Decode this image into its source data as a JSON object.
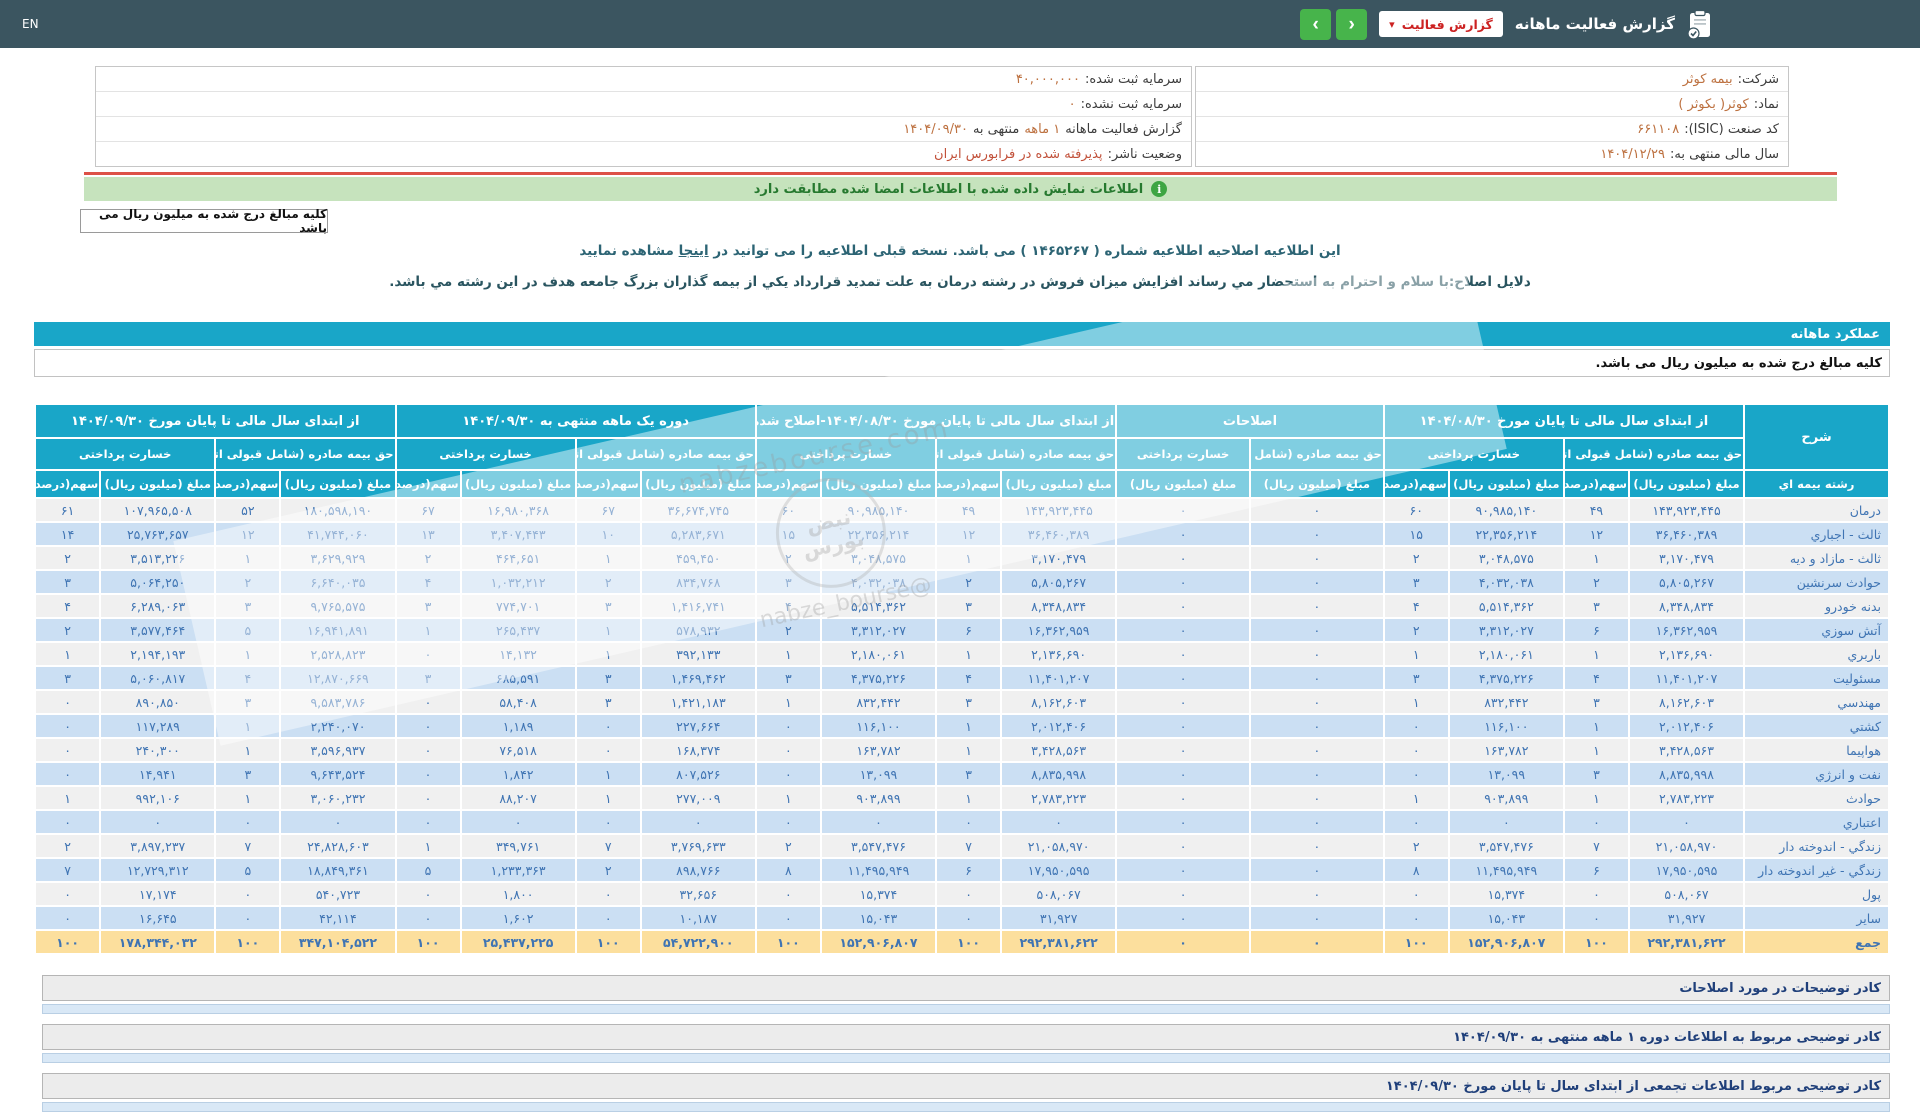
{
  "colors": {
    "topbar_bg": "#3b5560",
    "accent_teal": "#19a6c8",
    "button_green": "#47b44b",
    "dropdown_text_red": "#cc2222",
    "banner_green_bg": "#c6e3bd",
    "banner_text_green": "#26792f",
    "red_line": "#dd5147",
    "value_orange": "#bd7140",
    "row_blue": "#cbdff3",
    "row_gray": "#f0f0f0",
    "total_yellow": "#fcdf9d",
    "number_blue": "#3f74b3",
    "note_text_navy": "#1f3f7a"
  },
  "topbar": {
    "title": "گزارش فعالیت ماهانه",
    "dropdown_label": "گزارش فعالیت",
    "lang": "EN"
  },
  "info_right": [
    {
      "label": "شرکت:",
      "value": "بیمه کوثر"
    },
    {
      "label": "نماد:",
      "value": "کوثر( بکوثر )"
    },
    {
      "label": "کد صنعت (ISIC):",
      "value": "۶۶۱۱۰۸"
    },
    {
      "label": "سال مالی منتهی به:",
      "value": "۱۴۰۴/۱۲/۲۹"
    }
  ],
  "info_left": [
    {
      "label": "سرمایه ثبت شده:",
      "value": "۴۰,۰۰۰,۰۰۰"
    },
    {
      "label": "سرمایه ثبت نشده:",
      "value": "۰"
    },
    {
      "label": "گزارش فعالیت ماهانه",
      "value": "۱ ماهه",
      "label2": "منتهی به",
      "value2": "۱۴۰۴/۰۹/۳۰"
    },
    {
      "label": "وضعیت ناشر:",
      "value": "پذیرفته شده در فرابورس ایران"
    }
  ],
  "banner": {
    "text": "اطلاعات نمایش داده شده با اطلاعات امضا شده مطابقت دارد"
  },
  "million_box": "کلیه مبالغ درج شده به میلیون ریال می باشد",
  "notice": {
    "part1": "این اطلاعیه اصلاحیه اطلاعیه شماره ( ۱۴۶۵۲۶۷ ) می باشد. نسخه قبلی اطلاعیه را می توانید در",
    "link": "اینجا",
    "part2": "مشاهده نمایید"
  },
  "reason": "دلایل اصلاح:با سلام و احترام به استحضار مي رساند افزايش ميزان فروش در رشته درمان به علت تمديد قرارداد يكي از بيمه گذاران بزرگ جامعه هدف در اين رشته مي باشد.",
  "section_title": "عملکرد ماهانه",
  "million_row": "کلیه مبالغ درج شده به میلیون ریال می باشد.",
  "table": {
    "corner_label": "شرح",
    "row_header_label": "رشته بیمه اي",
    "premium_label": "حق بیمه صادره (شامل قبولی اتکایی)",
    "claims_label": "خسارت پرداختی",
    "amount_label": "مبلغ (میلیون ریال)",
    "share_label": "سهم(درصد)",
    "groups": [
      {
        "title": "از ابتدای سال مالی تا پایان مورخ ۱۴۰۴/۰۸/۳۰",
        "type": "full"
      },
      {
        "title": "اصلاحات",
        "type": "amount_only"
      },
      {
        "title": "از ابتدای سال مالی تا پایان مورخ ۱۴۰۴/۰۸/۳۰-اصلاح شده",
        "type": "full"
      },
      {
        "title": "دوره یک ماهه منتهی به ۱۴۰۴/۰۹/۳۰",
        "type": "full"
      },
      {
        "title": "از ابتدای سال مالی تا پایان مورخ ۱۴۰۴/۰۹/۳۰",
        "type": "full"
      }
    ],
    "rows": [
      {
        "label": "درمان",
        "cells": [
          "۱۴۳,۹۲۳,۴۴۵",
          "۴۹",
          "۹۰,۹۸۵,۱۴۰",
          "۶۰",
          "۰",
          "۰",
          "۱۴۳,۹۲۳,۴۴۵",
          "۴۹",
          "۹۰,۹۸۵,۱۴۰",
          "۶۰",
          "۳۶,۶۷۴,۷۴۵",
          "۶۷",
          "۱۶,۹۸۰,۳۶۸",
          "۶۷",
          "۱۸۰,۵۹۸,۱۹۰",
          "۵۲",
          "۱۰۷,۹۶۵,۵۰۸",
          "۶۱"
        ]
      },
      {
        "label": "ثالث - اجباري",
        "cells": [
          "۳۶,۴۶۰,۳۸۹",
          "۱۲",
          "۲۲,۳۵۶,۲۱۴",
          "۱۵",
          "۰",
          "۰",
          "۳۶,۴۶۰,۳۸۹",
          "۱۲",
          "۲۲,۳۵۶,۲۱۴",
          "۱۵",
          "۵,۲۸۳,۶۷۱",
          "۱۰",
          "۳,۴۰۷,۴۴۳",
          "۱۳",
          "۴۱,۷۴۴,۰۶۰",
          "۱۲",
          "۲۵,۷۶۳,۶۵۷",
          "۱۴"
        ]
      },
      {
        "label": "ثالث - مازاد و دیه",
        "cells": [
          "۳,۱۷۰,۴۷۹",
          "۱",
          "۳,۰۴۸,۵۷۵",
          "۲",
          "۰",
          "۰",
          "۳,۱۷۰,۴۷۹",
          "۱",
          "۳,۰۴۸,۵۷۵",
          "۲",
          "۴۵۹,۴۵۰",
          "۱",
          "۴۶۴,۶۵۱",
          "۲",
          "۳,۶۲۹,۹۲۹",
          "۱",
          "۳,۵۱۳,۲۲۶",
          "۲"
        ]
      },
      {
        "label": "حوادث سرنشین",
        "cells": [
          "۵,۸۰۵,۲۶۷",
          "۲",
          "۴,۰۳۲,۰۳۸",
          "۳",
          "۰",
          "۰",
          "۵,۸۰۵,۲۶۷",
          "۲",
          "۴,۰۳۲,۰۳۸",
          "۳",
          "۸۳۴,۷۶۸",
          "۲",
          "۱,۰۳۲,۲۱۲",
          "۴",
          "۶,۶۴۰,۰۳۵",
          "۲",
          "۵,۰۶۴,۲۵۰",
          "۳"
        ]
      },
      {
        "label": "بدنه خودرو",
        "cells": [
          "۸,۳۴۸,۸۳۴",
          "۳",
          "۵,۵۱۴,۳۶۲",
          "۴",
          "۰",
          "۰",
          "۸,۳۴۸,۸۳۴",
          "۳",
          "۵,۵۱۴,۳۶۲",
          "۴",
          "۱,۴۱۶,۷۴۱",
          "۳",
          "۷۷۴,۷۰۱",
          "۳",
          "۹,۷۶۵,۵۷۵",
          "۳",
          "۶,۲۸۹,۰۶۳",
          "۴"
        ]
      },
      {
        "label": "آتش سوزي",
        "cells": [
          "۱۶,۳۶۲,۹۵۹",
          "۶",
          "۳,۳۱۲,۰۲۷",
          "۲",
          "۰",
          "۰",
          "۱۶,۳۶۲,۹۵۹",
          "۶",
          "۳,۳۱۲,۰۲۷",
          "۲",
          "۵۷۸,۹۳۲",
          "۱",
          "۲۶۵,۴۳۷",
          "۱",
          "۱۶,۹۴۱,۸۹۱",
          "۵",
          "۳,۵۷۷,۴۶۴",
          "۲"
        ]
      },
      {
        "label": "باربري",
        "cells": [
          "۲,۱۳۶,۶۹۰",
          "۱",
          "۲,۱۸۰,۰۶۱",
          "۱",
          "۰",
          "۰",
          "۲,۱۳۶,۶۹۰",
          "۱",
          "۲,۱۸۰,۰۶۱",
          "۱",
          "۳۹۲,۱۳۳",
          "۱",
          "۱۴,۱۳۲",
          "۰",
          "۲,۵۲۸,۸۲۳",
          "۱",
          "۲,۱۹۴,۱۹۳",
          "۱"
        ]
      },
      {
        "label": "مسئولیت",
        "cells": [
          "۱۱,۴۰۱,۲۰۷",
          "۴",
          "۴,۳۷۵,۲۲۶",
          "۳",
          "۰",
          "۰",
          "۱۱,۴۰۱,۲۰۷",
          "۴",
          "۴,۳۷۵,۲۲۶",
          "۳",
          "۱,۴۶۹,۴۶۲",
          "۳",
          "۶۸۵,۵۹۱",
          "۳",
          "۱۲,۸۷۰,۶۶۹",
          "۴",
          "۵,۰۶۰,۸۱۷",
          "۳"
        ]
      },
      {
        "label": "مهندسي",
        "cells": [
          "۸,۱۶۲,۶۰۳",
          "۳",
          "۸۳۲,۴۴۲",
          "۱",
          "۰",
          "۰",
          "۸,۱۶۲,۶۰۳",
          "۳",
          "۸۳۲,۴۴۲",
          "۱",
          "۱,۴۲۱,۱۸۳",
          "۳",
          "۵۸,۴۰۸",
          "۰",
          "۹,۵۸۳,۷۸۶",
          "۳",
          "۸۹۰,۸۵۰",
          "۰"
        ]
      },
      {
        "label": "کشتي",
        "cells": [
          "۲,۰۱۲,۴۰۶",
          "۱",
          "۱۱۶,۱۰۰",
          "۰",
          "۰",
          "۰",
          "۲,۰۱۲,۴۰۶",
          "۱",
          "۱۱۶,۱۰۰",
          "۰",
          "۲۲۷,۶۶۴",
          "۰",
          "۱,۱۸۹",
          "۰",
          "۲,۲۴۰,۰۷۰",
          "۱",
          "۱۱۷,۲۸۹",
          "۰"
        ]
      },
      {
        "label": "هواپیما",
        "cells": [
          "۳,۴۲۸,۵۶۳",
          "۱",
          "۱۶۳,۷۸۲",
          "۰",
          "۰",
          "۰",
          "۳,۴۲۸,۵۶۳",
          "۱",
          "۱۶۳,۷۸۲",
          "۰",
          "۱۶۸,۳۷۴",
          "۰",
          "۷۶,۵۱۸",
          "۰",
          "۳,۵۹۶,۹۳۷",
          "۱",
          "۲۴۰,۳۰۰",
          "۰"
        ]
      },
      {
        "label": "نفت و انرژي",
        "cells": [
          "۸,۸۳۵,۹۹۸",
          "۳",
          "۱۳,۰۹۹",
          "۰",
          "۰",
          "۰",
          "۸,۸۳۵,۹۹۸",
          "۳",
          "۱۳,۰۹۹",
          "۰",
          "۸۰۷,۵۲۶",
          "۱",
          "۱,۸۴۲",
          "۰",
          "۹,۶۴۳,۵۲۴",
          "۳",
          "۱۴,۹۴۱",
          "۰"
        ]
      },
      {
        "label": "حوادث",
        "cells": [
          "۲,۷۸۳,۲۲۳",
          "۱",
          "۹۰۳,۸۹۹",
          "۱",
          "۰",
          "۰",
          "۲,۷۸۳,۲۲۳",
          "۱",
          "۹۰۳,۸۹۹",
          "۱",
          "۲۷۷,۰۰۹",
          "۱",
          "۸۸,۲۰۷",
          "۰",
          "۳,۰۶۰,۲۳۲",
          "۱",
          "۹۹۲,۱۰۶",
          "۱"
        ]
      },
      {
        "label": "اعتباري",
        "cells": [
          "۰",
          "۰",
          "۰",
          "۰",
          "۰",
          "۰",
          "۰",
          "۰",
          "۰",
          "۰",
          "۰",
          "۰",
          "۰",
          "۰",
          "۰",
          "۰",
          "۰",
          "۰"
        ]
      },
      {
        "label": "زندگي - اندوخته دار",
        "cells": [
          "۲۱,۰۵۸,۹۷۰",
          "۷",
          "۳,۵۴۷,۴۷۶",
          "۲",
          "۰",
          "۰",
          "۲۱,۰۵۸,۹۷۰",
          "۷",
          "۳,۵۴۷,۴۷۶",
          "۲",
          "۳,۷۶۹,۶۳۳",
          "۷",
          "۳۴۹,۷۶۱",
          "۱",
          "۲۴,۸۲۸,۶۰۳",
          "۷",
          "۳,۸۹۷,۲۳۷",
          "۲"
        ]
      },
      {
        "label": "زندگي - غیر اندوخته دار",
        "cells": [
          "۱۷,۹۵۰,۵۹۵",
          "۶",
          "۱۱,۴۹۵,۹۴۹",
          "۸",
          "۰",
          "۰",
          "۱۷,۹۵۰,۵۹۵",
          "۶",
          "۱۱,۴۹۵,۹۴۹",
          "۸",
          "۸۹۸,۷۶۶",
          "۲",
          "۱,۲۳۳,۳۶۳",
          "۵",
          "۱۸,۸۴۹,۳۶۱",
          "۵",
          "۱۲,۷۲۹,۳۱۲",
          "۷"
        ]
      },
      {
        "label": "پول",
        "cells": [
          "۵۰۸,۰۶۷",
          "۰",
          "۱۵,۳۷۴",
          "۰",
          "۰",
          "۰",
          "۵۰۸,۰۶۷",
          "۰",
          "۱۵,۳۷۴",
          "۰",
          "۳۲,۶۵۶",
          "۰",
          "۱,۸۰۰",
          "۰",
          "۵۴۰,۷۲۳",
          "۰",
          "۱۷,۱۷۴",
          "۰"
        ]
      },
      {
        "label": "سایر",
        "cells": [
          "۳۱,۹۲۷",
          "۰",
          "۱۵,۰۴۳",
          "۰",
          "۰",
          "۰",
          "۳۱,۹۲۷",
          "۰",
          "۱۵,۰۴۳",
          "۰",
          "۱۰,۱۸۷",
          "۰",
          "۱,۶۰۲",
          "۰",
          "۴۲,۱۱۴",
          "۰",
          "۱۶,۶۴۵",
          "۰"
        ]
      }
    ],
    "total": {
      "label": "جمع",
      "cells": [
        "۲۹۲,۳۸۱,۶۲۲",
        "۱۰۰",
        "۱۵۲,۹۰۶,۸۰۷",
        "۱۰۰",
        "۰",
        "۰",
        "۲۹۲,۳۸۱,۶۲۲",
        "۱۰۰",
        "۱۵۲,۹۰۶,۸۰۷",
        "۱۰۰",
        "۵۴,۷۲۲,۹۰۰",
        "۱۰۰",
        "۲۵,۴۳۷,۲۲۵",
        "۱۰۰",
        "۳۴۷,۱۰۴,۵۲۲",
        "۱۰۰",
        "۱۷۸,۳۴۴,۰۳۲",
        "۱۰۰"
      ]
    }
  },
  "notes": [
    "کادر توضیحات در مورد اصلاحات",
    "کادر توضیحی مربوط به اطلاعات دوره ۱ ماهه منتهی به ۱۴۰۴/۰۹/۳۰",
    "کادر توضیحی مربوط اطلاعات تجمعی از ابتدای سال تا پایان مورخ ۱۴۰۴/۰۹/۳۰"
  ],
  "watermark": {
    "name": "نبض بورس",
    "handle": "@nabze_bourse",
    "site": "nabzebourse.com"
  }
}
